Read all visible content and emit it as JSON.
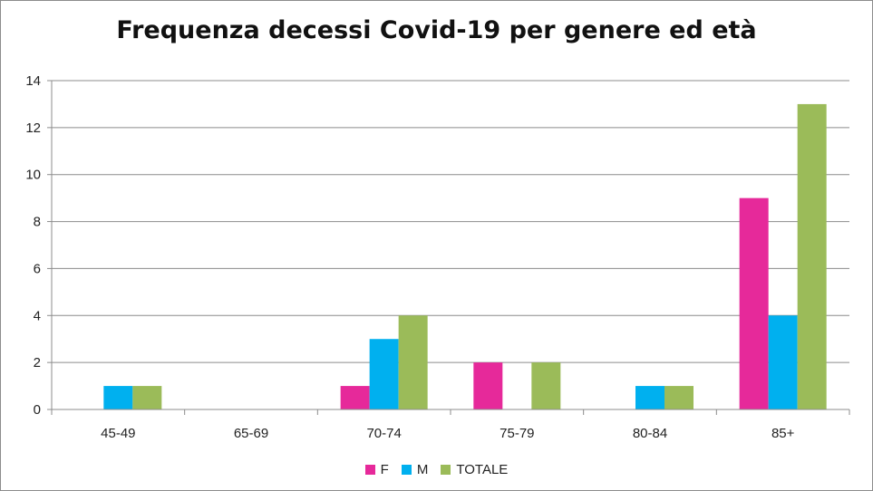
{
  "chart_data": {
    "type": "bar",
    "title": "Frequenza decessi Covid-19 per genere ed età",
    "xlabel": "",
    "ylabel": "",
    "ylim": [
      0,
      14
    ],
    "yticks": [
      0,
      2,
      4,
      6,
      8,
      10,
      12,
      14
    ],
    "categories": [
      "45-49",
      "65-69",
      "70-74",
      "75-79",
      "80-84",
      "85+"
    ],
    "series": [
      {
        "name": "F",
        "color": "#e6299a",
        "values": [
          0,
          0,
          1,
          2,
          0,
          9
        ]
      },
      {
        "name": "M",
        "color": "#00b0ef",
        "values": [
          1,
          0,
          3,
          0,
          1,
          4
        ]
      },
      {
        "name": "TOTALE",
        "color": "#9bbb59",
        "values": [
          1,
          0,
          4,
          2,
          1,
          13
        ]
      }
    ],
    "grid": true,
    "legend_position": "bottom"
  }
}
